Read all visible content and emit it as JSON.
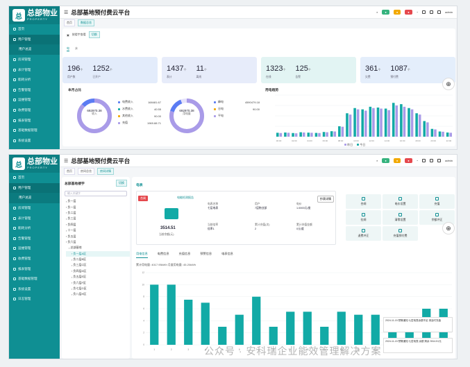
{
  "app": {
    "logo_mark": "总",
    "logo_cn": "总部物业",
    "logo_en": "PROPERTY",
    "title": "总部基地预付费云平台",
    "user": "admin",
    "header_pills": [
      "",
      "",
      ""
    ],
    "colors": {
      "primary": "#0f8f93",
      "sidebar": "#0f8f93",
      "bar": "#12aaa6",
      "purple": "#a99be8"
    }
  },
  "sidebar": {
    "items": [
      "首页",
      "用户管理",
      "房间管理",
      "表计管理",
      "能耗分析",
      "告警管理",
      "运维管理",
      "收费管理",
      "报表管理",
      "基础数据管理",
      "系统设置",
      "日志管理"
    ],
    "sub_item": "用户总览"
  },
  "top": {
    "crumbs": [
      "首页",
      "数据总览"
    ],
    "filter_label": "按楼宇查看",
    "filter_btn": "切换",
    "toggles": [
      "电",
      "水"
    ],
    "stats": [
      {
        "value": "196",
        "unit": "个",
        "label": "用户数",
        "value2": "1252",
        "unit2": "个",
        "label2": "已开户"
      },
      {
        "value": "1437",
        "unit": "个",
        "label": "表计",
        "value2": "11",
        "unit2": "个",
        "label2": "离线"
      },
      {
        "value": "1323",
        "unit": "个",
        "label": "在线",
        "value2": "125",
        "unit2": "个",
        "label2": "告警"
      },
      {
        "value": "361",
        "unit": "个",
        "label": "欠费",
        "value2": "1087",
        "unit2": "个",
        "label2": "预付费"
      }
    ],
    "donut_section": "本月占比",
    "donut1": {
      "value": "692970.38",
      "label": "收入",
      "legend": [
        {
          "name": "电费收入",
          "value": "168481.67",
          "color": "#5b7cf3"
        },
        {
          "name": "水费收入",
          "value": "40.55",
          "color": "#12aaa6"
        },
        {
          "name": "其他收入",
          "value": "90.00",
          "color": "#f2a900"
        },
        {
          "name": "充值",
          "value": "1969.88.71",
          "color": "#a99be8"
        }
      ]
    },
    "donut2": {
      "value": "692970.38",
      "label": "用电量",
      "legend": [
        {
          "name": "峰电",
          "value": "4590479.18",
          "color": "#5b7cf3"
        },
        {
          "name": "谷电",
          "value": "90.00",
          "color": "#f2a900"
        },
        {
          "name": "平电",
          "value": "",
          "color": "#a99be8"
        }
      ]
    },
    "trend_section": "用电趋势",
    "trend_legend": [
      "昨日",
      "今日"
    ]
  },
  "bottom": {
    "crumbs": [
      "首页",
      "房间总览",
      "房间详情"
    ],
    "tree_title": "总部基地楼宇",
    "tree_btn": "切换",
    "tree_search": "输入关键字",
    "tree": [
      "负一层",
      "负一层",
      "负二层",
      "负三层",
      "负四层",
      "十一层",
      "负五层",
      "负六层",
      "总部基地",
      "负一层A区",
      "负二层B区",
      "负三层C区",
      "负四层D区",
      "负五层E区",
      "负六层F区",
      "负七层G区",
      "负八层H区"
    ],
    "detail_title": "电表",
    "status_tag": "合闸",
    "status_link": "电能检测报告",
    "meter_value": "3514.51",
    "meter_label": "当前余额(元)",
    "fields": [
      {
        "label": "电表名称",
        "value": "七层电表"
      },
      {
        "label": "用户",
        "value": "7层物业部"
      },
      {
        "label": "电价",
        "value": "1.0000元/度"
      },
      {
        "label": "当前倍率",
        "value": "倍率1"
      },
      {
        "label": "累计充值(次)",
        "value": "2"
      },
      {
        "label": "累计充值金额",
        "value": "0元/度"
      }
    ],
    "detail_btn": "抄表详情",
    "actions": [
      "合闸",
      "电价设置",
      "充值",
      "拉闸",
      "清零设置",
      "余额冲正",
      "退费冲正",
      "充值预付费"
    ],
    "tabs": [
      "用电信息",
      "电费信息",
      "充值信息",
      "预警信息",
      "电表信息"
    ],
    "usage_line": "累计用电量: 4017.95kWh   月度用电量: 45.20kWh"
  },
  "chart_data": [
    {
      "type": "bar",
      "title": "",
      "categories": [
        "00:00",
        "01:00",
        "02:00",
        "03:00",
        "04:00",
        "05:00",
        "06:00",
        "07:00",
        "08:00",
        "09:00",
        "10:00",
        "11:00",
        "12:00",
        "13:00",
        "14:00",
        "15:00",
        "16:00",
        "17:00",
        "18:00",
        "19:00",
        "20:00",
        "21:00",
        "22:00"
      ],
      "series": [
        {
          "name": "今日",
          "values": [
            150,
            160,
            140,
            170,
            155,
            145,
            180,
            210,
            400,
            900,
            1100,
            1050,
            1150,
            1120,
            1080,
            1300,
            1250,
            1100,
            900,
            600,
            300,
            200,
            160
          ]
        },
        {
          "name": "昨日",
          "values": [
            140,
            150,
            130,
            160,
            150,
            140,
            170,
            200,
            380,
            850,
            1050,
            1000,
            1100,
            1080,
            1020,
            1200,
            1150,
            1050,
            850,
            550,
            280,
            190,
            150
          ]
        }
      ],
      "ylim": [
        0,
        1600
      ]
    },
    {
      "type": "bar",
      "title": "",
      "categories": [
        "1",
        "2",
        "3",
        "4",
        "5",
        "6",
        "7",
        "8",
        "9",
        "10",
        "11",
        "12",
        "13",
        "14",
        "15",
        "16",
        "17",
        "18"
      ],
      "values": [
        10,
        10,
        7.5,
        7,
        3,
        5,
        8,
        3,
        5.5,
        5.5,
        3,
        5.5,
        5,
        5,
        4.5,
        4.5,
        6,
        6
      ],
      "ylim": [
        0,
        12
      ]
    }
  ],
  "notices": [
    {
      "text": "2024-11-15 预警通知 七层电表余额不足 请及时充值"
    },
    {
      "text": "2024-11-15 预警通知 七层电表 余额 剩余 3514.51元"
    }
  ],
  "watermark": "公众号 · 安科瑞企业能效管理解决方案"
}
